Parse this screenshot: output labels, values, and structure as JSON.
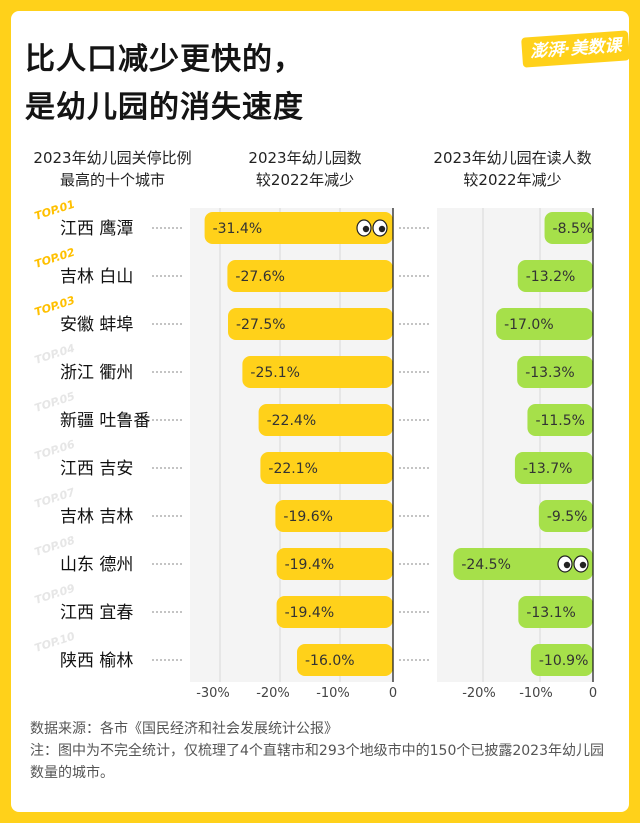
{
  "title_line1": "比人口减少更快的，",
  "title_line2": "是幼儿园的消失速度",
  "logo": "澎湃·美数课",
  "header_left": [
    "2023年幼儿园关停比例",
    "最高的十个城市"
  ],
  "header_mid": [
    "2023年幼儿园数",
    "较2022年减少"
  ],
  "header_right": [
    "2023年幼儿园在读人数",
    "较2022年减少"
  ],
  "colors": {
    "yellow": "#ffd11a",
    "green": "#a6e04a",
    "axis": "#222222",
    "dotted": "#888888"
  },
  "chart_data": {
    "type": "bar",
    "orientation": "horizontal",
    "categories": [
      "江西 鹰潭",
      "吉林 白山",
      "安徽 蚌埠",
      "浙江 衢州",
      "新疆 吐鲁番",
      "江西 吉安",
      "吉林 吉林",
      "山东 德州",
      "江西 宜春",
      "陕西 榆林"
    ],
    "ranks": [
      "TOP.01",
      "TOP.02",
      "TOP.03",
      "TOP.04",
      "TOP.05",
      "TOP.06",
      "TOP.07",
      "TOP.08",
      "TOP.09",
      "TOP.10"
    ],
    "series": [
      {
        "values": [
          -31.4,
          -27.6,
          -27.5,
          -25.1,
          -22.4,
          -22.1,
          -19.6,
          -19.4,
          -19.4,
          -16.0
        ],
        "labels": [
          "-31.4%",
          "-27.6%",
          "-27.5%",
          "-25.1%",
          "-22.4%",
          "-22.1%",
          "-19.6%",
          "-19.4%",
          "-19.4%",
          "-16.0%"
        ],
        "xticks": [
          "-30%",
          "-20%",
          "-10%",
          "0"
        ],
        "xtick_values": [
          -30,
          -20,
          -10,
          0
        ],
        "xlim": [
          -35,
          0
        ],
        "color": "#ffd11a"
      },
      {
        "values": [
          -8.5,
          -13.2,
          -17.0,
          -13.3,
          -11.5,
          -13.7,
          -9.5,
          -24.5,
          -13.1,
          -10.9
        ],
        "labels": [
          "-8.5%",
          "-13.2%",
          "-17.0%",
          "-13.3%",
          "-11.5%",
          "-13.7%",
          "-9.5%",
          "-24.5%",
          "-13.1%",
          "-10.9%"
        ],
        "xticks": [
          "-20%",
          "-10%",
          "0"
        ],
        "xtick_values": [
          -20,
          -10,
          0
        ],
        "xlim": [
          -27.5,
          0
        ],
        "color": "#a6e04a"
      }
    ]
  },
  "notes": [
    "数据来源：各市《国民经济和社会发展统计公报》",
    "注：图中为不完全统计，仅梳理了4个直辖市和293个地级市中的150个已披露2023年幼儿园数量的城市。"
  ]
}
